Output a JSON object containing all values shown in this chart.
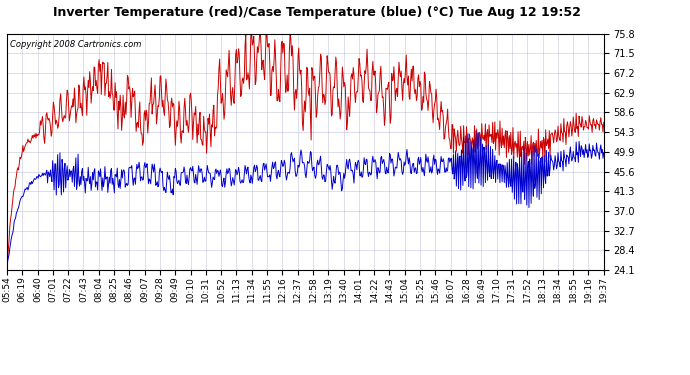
{
  "title": "Inverter Temperature (red)/Case Temperature (blue) (°C) Tue Aug 12 19:52",
  "copyright": "Copyright 2008 Cartronics.com",
  "yticks": [
    24.1,
    28.4,
    32.7,
    37.0,
    41.3,
    45.6,
    49.9,
    54.3,
    58.6,
    62.9,
    67.2,
    71.5,
    75.8
  ],
  "ylim": [
    24.1,
    75.8
  ],
  "background_color": "#ffffff",
  "plot_bg_color": "#ffffff",
  "grid_color": "#aaaacc",
  "red_color": "#cc0000",
  "blue_color": "#0000cc",
  "x_labels": [
    "05:54",
    "06:19",
    "06:40",
    "07:01",
    "07:22",
    "07:43",
    "08:04",
    "08:25",
    "08:46",
    "09:07",
    "09:28",
    "09:49",
    "10:10",
    "10:31",
    "10:52",
    "11:13",
    "11:34",
    "11:55",
    "12:16",
    "12:37",
    "12:58",
    "13:19",
    "13:40",
    "14:01",
    "14:22",
    "14:43",
    "15:04",
    "15:25",
    "15:46",
    "16:07",
    "16:28",
    "16:49",
    "17:10",
    "17:31",
    "17:52",
    "18:13",
    "18:34",
    "18:55",
    "19:16",
    "19:37"
  ],
  "linewidth": 0.7,
  "title_fontsize": 9,
  "tick_fontsize": 7,
  "copyright_fontsize": 6
}
